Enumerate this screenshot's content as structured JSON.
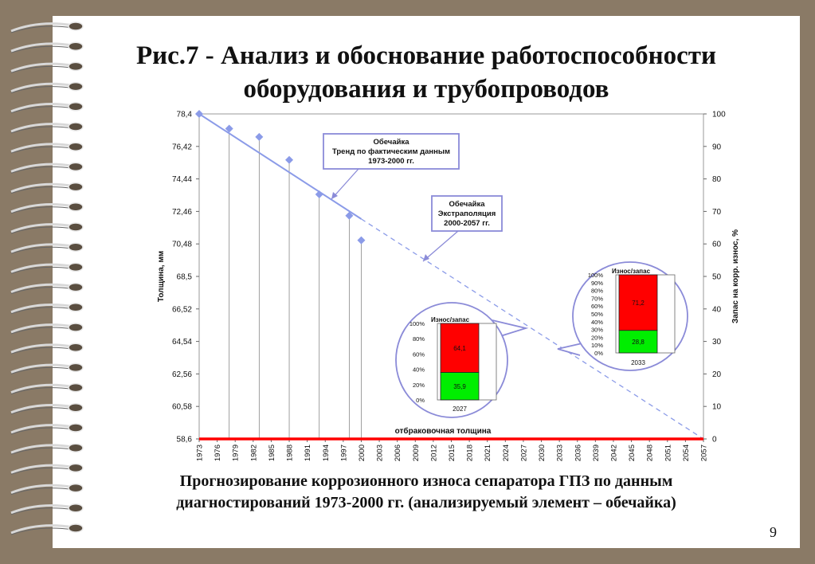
{
  "slide": {
    "title_line1": "Рис.7 - Анализ и обоснование работоспособности",
    "title_line2": "оборудования и трубопроводов",
    "caption_line1": "Прогнозирование коррозионного износа сепаратора ГПЗ по данным",
    "caption_line2": "диагностирований 1973-2000 гг. (анализируемый элемент – обечайка)",
    "page_number": "9"
  },
  "chart_data": {
    "type": "scatter",
    "ylabel": "Толщина, мм",
    "y2label": "Запас на корр. износ, %",
    "yticks": [
      "78,4",
      "76,42",
      "74,44",
      "72,46",
      "70,48",
      "68,5",
      "66,52",
      "64,54",
      "62,56",
      "60,58",
      "58,6"
    ],
    "ylim": [
      58.6,
      78.4
    ],
    "y2ticks": [
      "100",
      "90",
      "80",
      "70",
      "60",
      "50",
      "40",
      "30",
      "20",
      "10",
      "0"
    ],
    "y2lim": [
      0,
      100
    ],
    "xticks": [
      "1973",
      "1976",
      "1979",
      "1982",
      "1985",
      "1988",
      "1991",
      "1994",
      "1997",
      "2000",
      "2003",
      "2006",
      "2009",
      "2012",
      "2015",
      "2018",
      "2021",
      "2024",
      "2027",
      "2030",
      "2033",
      "2036",
      "2039",
      "2042",
      "2045",
      "2048",
      "2051",
      "2054",
      "2057"
    ],
    "xlim": [
      1973,
      2057
    ],
    "measurements": {
      "name": "Обечайка",
      "x": [
        1973,
        1978,
        1983,
        1988,
        1993,
        1998,
        2000
      ],
      "y": [
        78.4,
        77.5,
        77.0,
        75.6,
        73.5,
        72.2,
        70.7
      ]
    },
    "trend": {
      "x": [
        1973,
        2000
      ],
      "y": [
        78.4,
        72.0
      ]
    },
    "extrapolation": {
      "x": [
        2000,
        2057
      ],
      "y": [
        72.0,
        58.6
      ]
    },
    "reject_line": {
      "y": 58.6,
      "label": "отбраковочная толщина",
      "color": "#ff0000"
    },
    "annotations": {
      "trend_box": [
        "Обечайка",
        "Тренд по фактическим данным",
        "1973-2000 гг."
      ],
      "extrap_box": [
        "Обечайка",
        "Экстраполяция",
        "2000-2057 гг."
      ]
    },
    "insets": [
      {
        "title": "Износ/запас",
        "year": "2027",
        "wear": 64.1,
        "reserve": 35.9,
        "wear_label": "64,1",
        "reserve_label": "35,9",
        "ticks": [
          "100%",
          "80%",
          "60%",
          "40%",
          "20%",
          "0%"
        ]
      },
      {
        "title": "Износ/запас",
        "year": "2033",
        "wear": 71.2,
        "reserve": 28.8,
        "wear_label": "71,2",
        "reserve_label": "28,8",
        "ticks": [
          "100%",
          "90%",
          "80%",
          "70%",
          "60%",
          "50%",
          "40%",
          "30%",
          "20%",
          "10%",
          "0%"
        ]
      }
    ],
    "colors": {
      "series": "#8b9be8",
      "wear": "#ff0000",
      "reserve": "#00ee00",
      "callout": "#8b8bd8",
      "reject": "#ff0000"
    }
  }
}
